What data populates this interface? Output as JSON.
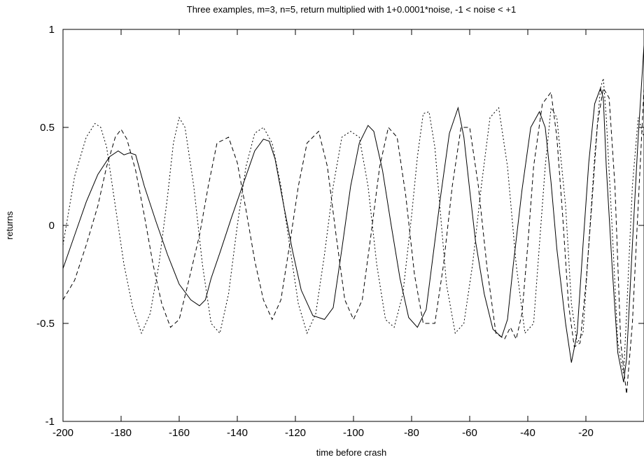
{
  "chart_data": {
    "type": "line",
    "title": "Three examples, m=3, n=5, return multiplied with 1+0.0001*noise, -1 < noise < +1",
    "xlabel": "time before crash",
    "ylabel": "returns",
    "xlim": [
      -200,
      0
    ],
    "ylim": [
      -1,
      1
    ],
    "xticks": [
      -200,
      -180,
      -160,
      -140,
      -120,
      -100,
      -80,
      -60,
      -40,
      -20
    ],
    "xtick_labels": [
      "-200",
      "-180",
      "-160",
      "-140",
      "-120",
      "-100",
      "-80",
      "-60",
      "-40",
      "-20"
    ],
    "yticks": [
      -1,
      -0.5,
      0,
      0.5,
      1
    ],
    "ytick_labels": [
      "-1",
      "-0.5",
      "0",
      "0.5",
      "1"
    ],
    "grid": false,
    "series": [
      {
        "style": "solid",
        "x": [
          -200,
          -196,
          -192,
          -188,
          -184,
          -181,
          -179,
          -177,
          -175,
          -172,
          -168,
          -164,
          -160,
          -156,
          -153,
          -151,
          -149,
          -146,
          -142,
          -138,
          -134,
          -131,
          -129,
          -127,
          -124,
          -121,
          -118,
          -114,
          -110,
          -107,
          -104,
          -101,
          -98,
          -95,
          -93,
          -90,
          -87,
          -84,
          -81,
          -78,
          -75,
          -73,
          -70,
          -67,
          -64,
          -62,
          -60,
          -58,
          -55,
          -52,
          -49,
          -47,
          -45,
          -42,
          -39,
          -36,
          -34,
          -32,
          -30,
          -27,
          -25,
          -23,
          -21,
          -19,
          -17,
          -15,
          -14,
          -13,
          -11,
          -9,
          -7,
          -6,
          -4,
          -2,
          0
        ],
        "y": [
          -0.22,
          -0.05,
          0.12,
          0.26,
          0.35,
          0.38,
          0.36,
          0.37,
          0.36,
          0.2,
          0.02,
          -0.15,
          -0.3,
          -0.38,
          -0.41,
          -0.38,
          -0.27,
          -0.14,
          0.04,
          0.21,
          0.38,
          0.44,
          0.43,
          0.34,
          0.1,
          -0.13,
          -0.33,
          -0.46,
          -0.48,
          -0.42,
          -0.12,
          0.2,
          0.42,
          0.51,
          0.48,
          0.28,
          0.0,
          -0.27,
          -0.47,
          -0.52,
          -0.43,
          -0.2,
          0.15,
          0.47,
          0.6,
          0.45,
          0.18,
          -0.08,
          -0.35,
          -0.53,
          -0.57,
          -0.48,
          -0.2,
          0.18,
          0.5,
          0.58,
          0.5,
          0.22,
          -0.12,
          -0.5,
          -0.7,
          -0.55,
          -0.1,
          0.32,
          0.62,
          0.7,
          0.65,
          0.3,
          -0.2,
          -0.65,
          -0.8,
          -0.68,
          -0.1,
          0.45,
          0.92
        ]
      },
      {
        "style": "dashed",
        "x": [
          -200,
          -196,
          -192,
          -188,
          -185,
          -182,
          -180,
          -178,
          -175,
          -172,
          -169,
          -166,
          -163,
          -160,
          -157,
          -153,
          -150,
          -147,
          -143,
          -140,
          -137,
          -134,
          -131,
          -128,
          -125,
          -122,
          -119,
          -116,
          -112,
          -109,
          -106,
          -103,
          -100,
          -97,
          -94,
          -91,
          -88,
          -85,
          -82,
          -79,
          -76,
          -72,
          -69,
          -66,
          -63,
          -60,
          -57,
          -54,
          -51,
          -48,
          -46,
          -44,
          -42,
          -40,
          -38,
          -35,
          -32,
          -30,
          -28,
          -26,
          -24,
          -22,
          -20,
          -18,
          -16,
          -14,
          -12,
          -10,
          -8,
          -6,
          -4,
          -2,
          0
        ],
        "y": [
          -0.38,
          -0.28,
          -0.1,
          0.1,
          0.3,
          0.45,
          0.49,
          0.44,
          0.28,
          0.05,
          -0.2,
          -0.4,
          -0.52,
          -0.48,
          -0.3,
          -0.05,
          0.2,
          0.42,
          0.45,
          0.32,
          0.08,
          -0.18,
          -0.38,
          -0.48,
          -0.38,
          -0.1,
          0.2,
          0.42,
          0.48,
          0.3,
          -0.05,
          -0.38,
          -0.48,
          -0.38,
          -0.05,
          0.3,
          0.5,
          0.45,
          0.15,
          -0.25,
          -0.5,
          -0.5,
          -0.2,
          0.2,
          0.5,
          0.5,
          0.2,
          -0.22,
          -0.55,
          -0.58,
          -0.52,
          -0.58,
          -0.45,
          -0.1,
          0.3,
          0.62,
          0.68,
          0.45,
          0.05,
          -0.4,
          -0.62,
          -0.6,
          -0.3,
          0.1,
          0.52,
          0.7,
          0.65,
          0.2,
          -0.6,
          -0.86,
          -0.5,
          0.1,
          0.7
        ]
      },
      {
        "style": "dotted",
        "x": [
          -200,
          -196,
          -192,
          -189,
          -187,
          -185,
          -182,
          -179,
          -176,
          -173,
          -170,
          -167,
          -164,
          -162,
          -160,
          -158,
          -155,
          -152,
          -149,
          -146,
          -143,
          -140,
          -137,
          -134,
          -131,
          -128,
          -125,
          -122,
          -119,
          -116,
          -113,
          -110,
          -107,
          -104,
          -101,
          -98,
          -95,
          -92,
          -89,
          -86,
          -83,
          -80,
          -78,
          -76,
          -74,
          -72,
          -70,
          -68,
          -65,
          -62,
          -59,
          -56,
          -53,
          -50,
          -47,
          -44,
          -41,
          -38,
          -36,
          -34,
          -32,
          -30,
          -27,
          -25,
          -23,
          -21,
          -19,
          -17,
          -15,
          -14,
          -13,
          -11,
          -9,
          -7,
          -6,
          -4,
          -2,
          0
        ],
        "y": [
          -0.1,
          0.25,
          0.45,
          0.52,
          0.5,
          0.4,
          0.1,
          -0.2,
          -0.42,
          -0.55,
          -0.45,
          -0.2,
          0.15,
          0.42,
          0.55,
          0.5,
          0.2,
          -0.2,
          -0.5,
          -0.55,
          -0.35,
          0.0,
          0.3,
          0.47,
          0.5,
          0.42,
          0.2,
          -0.1,
          -0.4,
          -0.55,
          -0.45,
          -0.15,
          0.2,
          0.45,
          0.48,
          0.45,
          0.2,
          -0.2,
          -0.48,
          -0.52,
          -0.35,
          0.05,
          0.35,
          0.57,
          0.58,
          0.4,
          0.05,
          -0.3,
          -0.55,
          -0.5,
          -0.2,
          0.2,
          0.55,
          0.6,
          0.3,
          -0.2,
          -0.55,
          -0.5,
          -0.1,
          0.3,
          0.6,
          0.55,
          0.1,
          -0.4,
          -0.6,
          -0.55,
          -0.1,
          0.35,
          0.7,
          0.75,
          0.55,
          0.0,
          -0.6,
          -0.76,
          -0.45,
          0.2,
          0.55,
          0.45
        ]
      }
    ]
  }
}
